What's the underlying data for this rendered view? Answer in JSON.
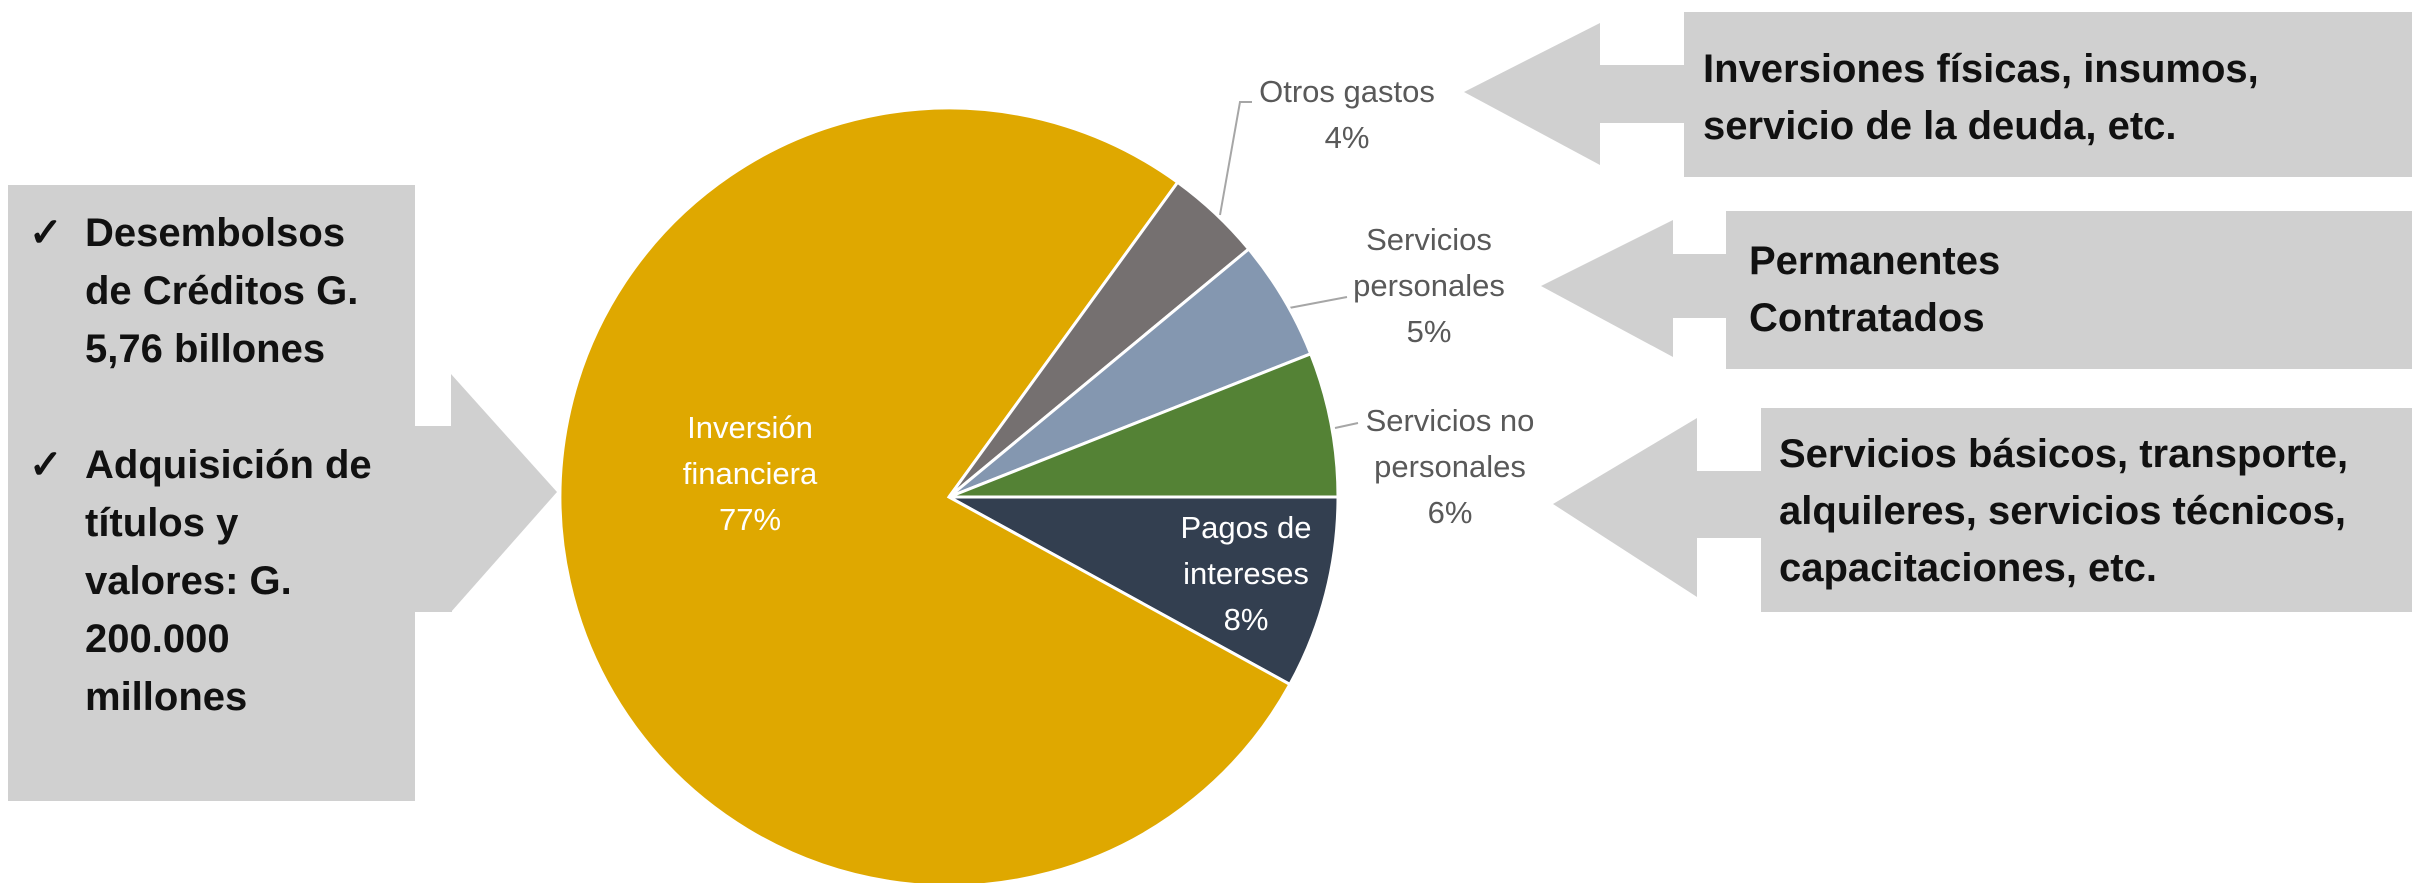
{
  "chart_data": {
    "type": "pie",
    "categories": [
      "Pagos de intereses",
      "Inversión financiera",
      "Otros gastos",
      "Servicios personales",
      "Servicios no personales"
    ],
    "values": [
      8,
      77,
      4,
      5,
      6
    ],
    "value_labels": [
      "8%",
      "77%",
      "4%",
      "5%",
      "6%"
    ],
    "colors": [
      "#333f50",
      "#dfa800",
      "#757070",
      "#8497b0",
      "#548235"
    ]
  },
  "left_box": {
    "items": [
      [
        "Desembolsos",
        "de Créditos  G.",
        "5,76 billones"
      ],
      [
        "Adquisición de",
        "títulos y",
        "valores: G.",
        "200.000",
        "millones"
      ]
    ]
  },
  "right_boxes": [
    {
      "lines": [
        "Inversiones físicas, insumos,",
        "servicio de la deuda, etc."
      ]
    },
    {
      "lines": [
        "Permanentes",
        "Contratados"
      ]
    },
    {
      "lines": [
        "Servicios básicos, transporte,",
        "alquileres, servicios técnicos,",
        "capacitaciones, etc."
      ]
    }
  ]
}
